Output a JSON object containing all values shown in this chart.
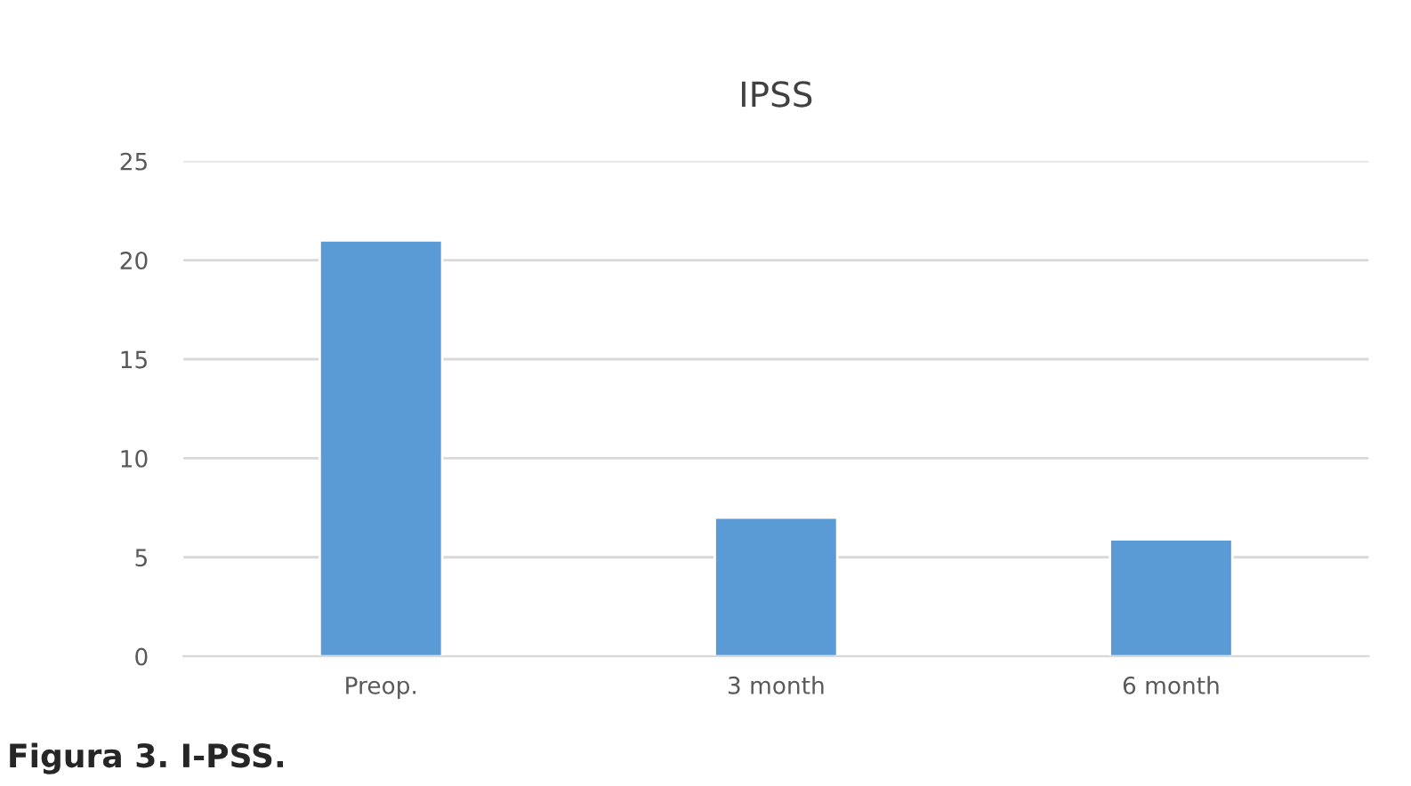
{
  "chart_data": {
    "type": "bar",
    "title": "IPSS",
    "categories": [
      "Preop.",
      "3 month",
      "6 month"
    ],
    "values": [
      21,
      7,
      5.9
    ],
    "color": "#5b9bd5",
    "ylim": [
      0,
      25
    ],
    "yticks": [
      0,
      5,
      10,
      15,
      20,
      25
    ],
    "grid": "y",
    "annotations": [
      "Figura 3. I-PSS."
    ]
  }
}
